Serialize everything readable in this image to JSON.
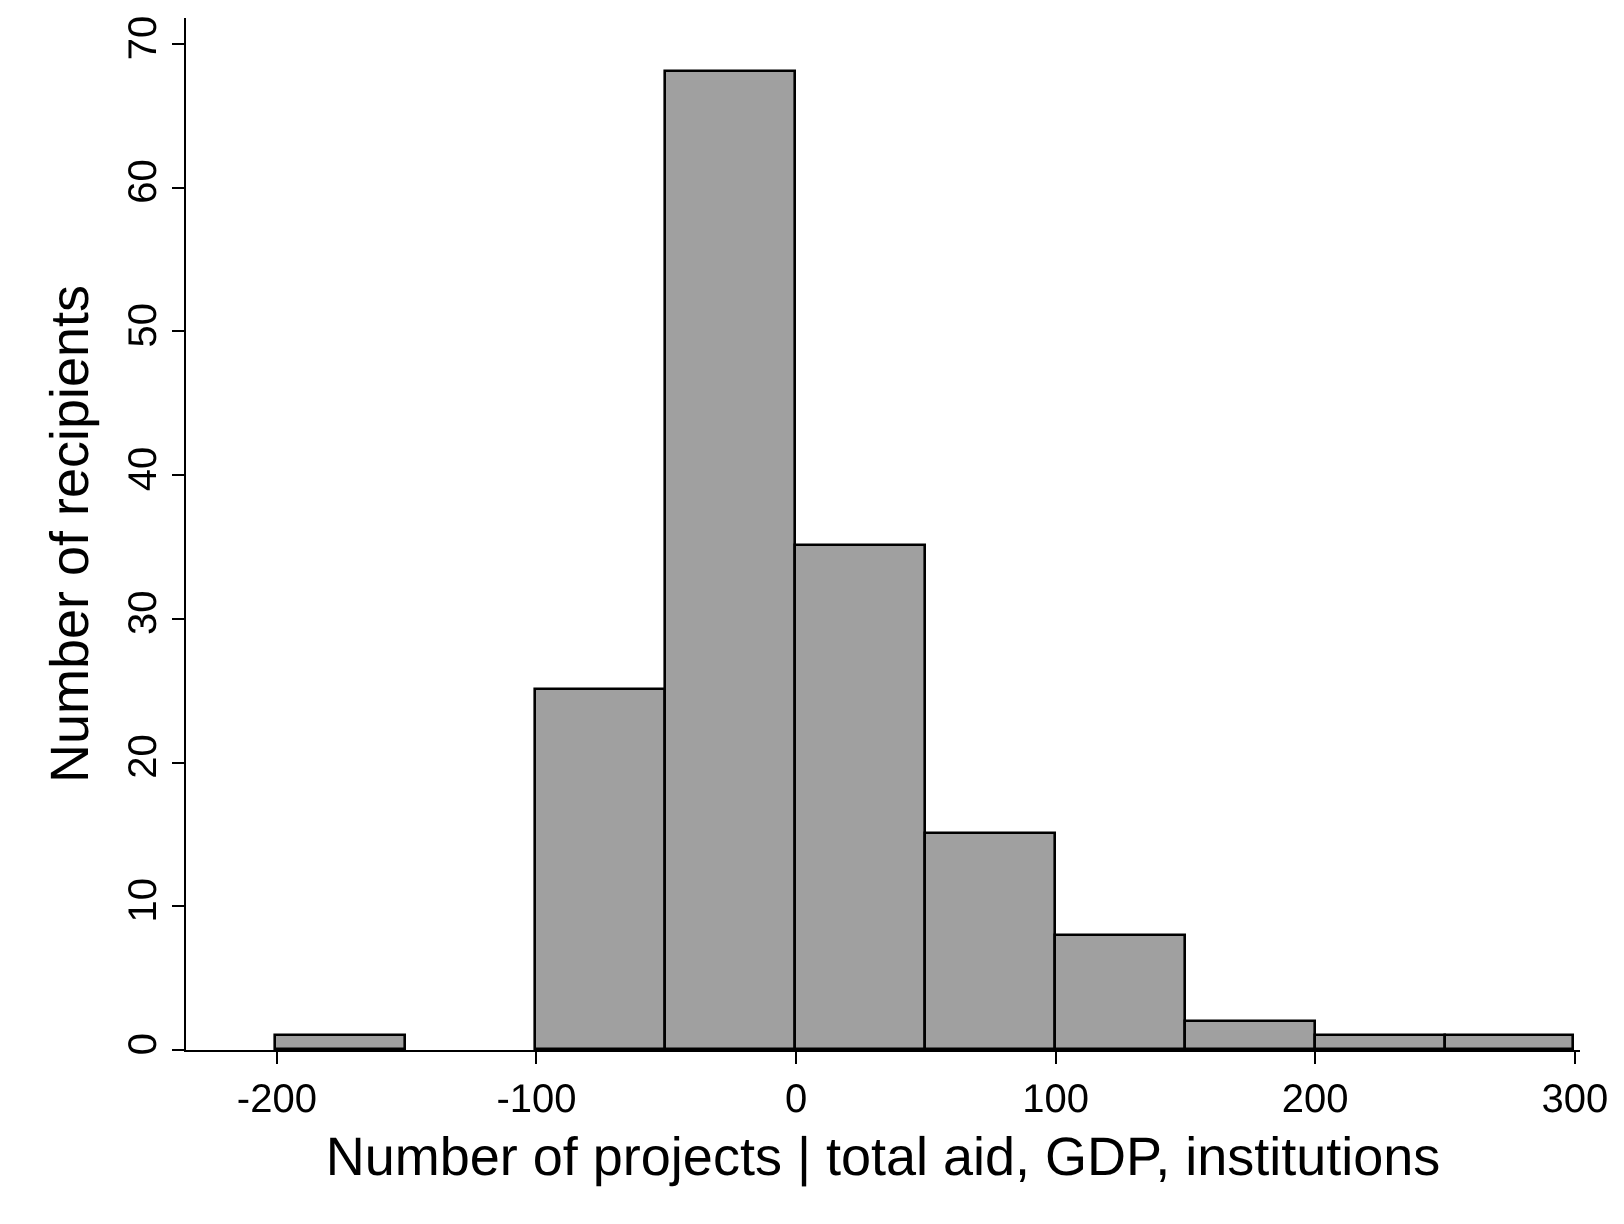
{
  "chart_data": {
    "type": "histogram",
    "xlabel": "Number of projects | total aid, GDP, institutions",
    "ylabel": "Number of recipients",
    "bins": [
      -200,
      -150,
      -100,
      -50,
      0,
      50,
      100,
      150,
      200,
      250,
      300
    ],
    "values": [
      1,
      0,
      25,
      68,
      35,
      15,
      8,
      2,
      1,
      1
    ],
    "color": "#a0a0a0",
    "xlim": [
      -235,
      302
    ],
    "ylim": [
      0,
      71.8
    ],
    "xticks": [
      -200,
      -100,
      0,
      100,
      200,
      300
    ],
    "yticks": [
      0,
      10,
      20,
      30,
      40,
      50,
      60,
      70
    ]
  }
}
